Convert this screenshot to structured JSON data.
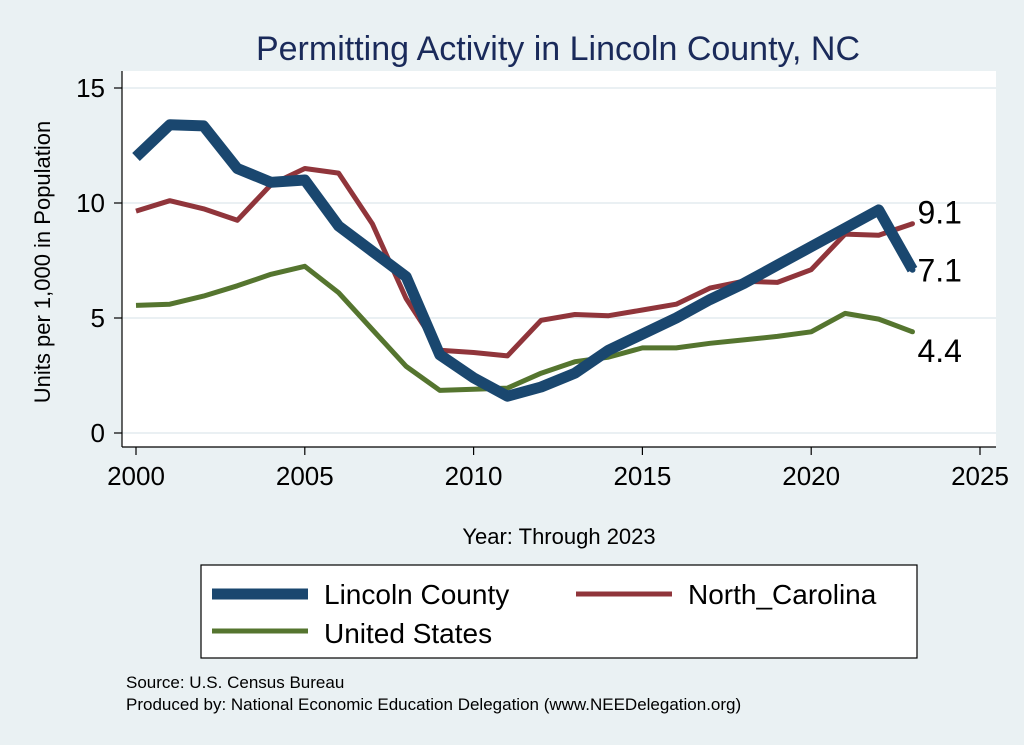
{
  "chart_data": {
    "type": "line",
    "title": "Permitting Activity in Lincoln County, NC",
    "xlabel": "Year: Through 2023",
    "ylabel": "Units per 1,000 in Population",
    "xlim": [
      2000,
      2025
    ],
    "ylim": [
      0,
      15
    ],
    "x_ticks": [
      2000,
      2005,
      2010,
      2015,
      2020,
      2025
    ],
    "y_ticks": [
      0,
      5,
      10,
      15
    ],
    "grid": true,
    "x": [
      2000,
      2001,
      2002,
      2003,
      2004,
      2005,
      2006,
      2007,
      2008,
      2009,
      2010,
      2011,
      2012,
      2013,
      2014,
      2015,
      2016,
      2017,
      2018,
      2019,
      2020,
      2021,
      2022,
      2023
    ],
    "series": [
      {
        "name": "Lincoln County",
        "color": "#1a476f",
        "values": [
          12.0,
          13.4,
          13.35,
          11.5,
          10.9,
          11.0,
          9.0,
          7.9,
          6.8,
          3.4,
          2.4,
          1.6,
          2.0,
          2.6,
          3.6,
          4.3,
          5.0,
          5.8,
          6.5,
          7.3,
          8.1,
          8.9,
          9.7,
          7.1
        ],
        "end_label": "7.1"
      },
      {
        "name": "North_Carolina",
        "color": "#90353b",
        "values": [
          9.65,
          10.1,
          9.75,
          9.25,
          10.8,
          11.5,
          11.3,
          9.1,
          5.85,
          3.6,
          3.5,
          3.35,
          4.9,
          5.15,
          5.1,
          5.35,
          5.6,
          6.3,
          6.6,
          6.55,
          7.1,
          8.65,
          8.6,
          9.1
        ],
        "end_label": "9.1"
      },
      {
        "name": "United States",
        "color": "#55752f",
        "values": [
          5.55,
          5.6,
          5.95,
          6.4,
          6.9,
          7.25,
          6.1,
          4.5,
          2.9,
          1.85,
          1.9,
          1.95,
          2.6,
          3.1,
          3.3,
          3.7,
          3.7,
          3.9,
          4.05,
          4.2,
          4.4,
          5.2,
          4.95,
          4.4
        ],
        "end_label": "4.4"
      }
    ],
    "legend_position": "bottom"
  },
  "source": {
    "line1": "Source: U.S. Census Bureau",
    "line2": "Produced by: National Economic Education Delegation (www.NEEDelegation.org)"
  }
}
